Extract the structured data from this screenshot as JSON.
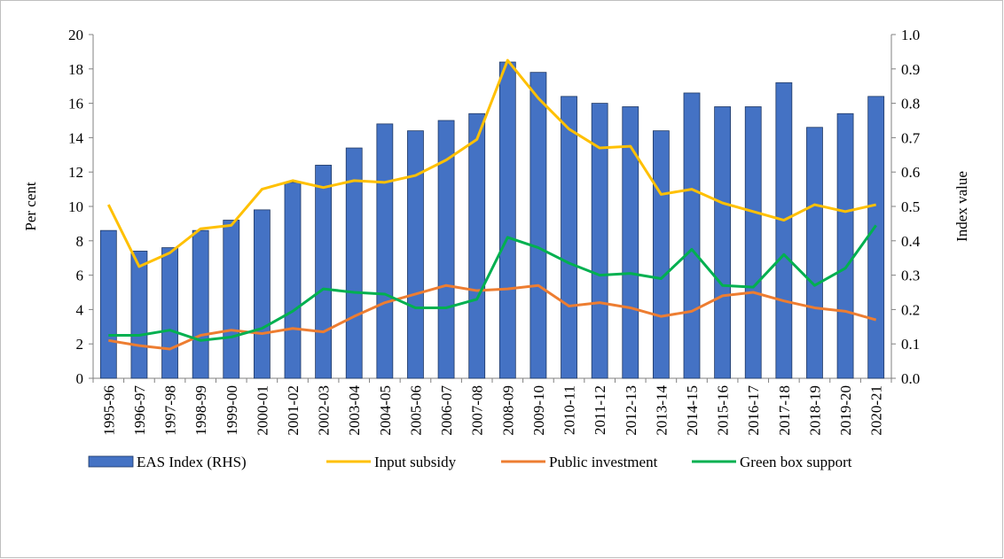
{
  "chart_data": {
    "type": "bar-line",
    "ylabel": "Per cent",
    "y2label": "Index value",
    "categories": [
      "1995-96",
      "1996-97",
      "1997-98",
      "1998-99",
      "1999-00",
      "2000-01",
      "2001-02",
      "2002-03",
      "2003-04",
      "2004-05",
      "2005-06",
      "2006-07",
      "2007-08",
      "2008-09",
      "2009-10",
      "2010-11",
      "2011-12",
      "2012-13",
      "2013-14",
      "2014-15",
      "2015-16",
      "2016-17",
      "2017-18",
      "2018-19",
      "2019-20",
      "2020-21"
    ],
    "ylim": [
      0,
      20
    ],
    "yticks": [
      0,
      2,
      4,
      6,
      8,
      10,
      12,
      14,
      16,
      18,
      20
    ],
    "y2lim": [
      0,
      1
    ],
    "y2ticks": [
      {
        "value": 0,
        "label": "0.0"
      },
      0.1,
      0.2,
      0.3,
      0.4,
      0.5,
      0.6,
      0.7,
      0.8,
      0.9,
      {
        "value": 1,
        "label": "1.0"
      }
    ],
    "series": [
      {
        "name": "EAS Index (RHS)",
        "type": "bar",
        "axis": "y2",
        "color": "#4472c4",
        "values": [
          0.43,
          0.37,
          0.38,
          0.43,
          0.46,
          0.49,
          0.57,
          0.62,
          0.67,
          0.74,
          0.72,
          0.75,
          0.77,
          0.92,
          0.89,
          0.82,
          0.8,
          0.79,
          0.72,
          0.83,
          0.79,
          0.79,
          0.86,
          0.73,
          0.77,
          0.82
        ]
      },
      {
        "name": "Input subsidy",
        "type": "line",
        "color": "#ffc000",
        "values": [
          10.1,
          6.5,
          7.3,
          8.7,
          8.9,
          11.0,
          11.5,
          11.1,
          11.5,
          11.4,
          11.8,
          12.7,
          13.9,
          18.5,
          16.3,
          14.5,
          13.4,
          13.5,
          10.7,
          11.0,
          10.2,
          9.7,
          9.2,
          10.1,
          9.7,
          10.1
        ]
      },
      {
        "name": "Public investment",
        "type": "line",
        "color": "#ed7d31",
        "values": [
          2.2,
          1.9,
          1.7,
          2.5,
          2.8,
          2.6,
          2.9,
          2.7,
          3.6,
          4.4,
          4.9,
          5.4,
          5.1,
          5.2,
          5.4,
          4.2,
          4.4,
          4.1,
          3.6,
          3.9,
          4.8,
          5.0,
          4.5,
          4.1,
          3.9,
          3.4
        ]
      },
      {
        "name": "Green box support",
        "type": "line",
        "color": "#00b050",
        "values": [
          2.5,
          2.5,
          2.8,
          2.2,
          2.4,
          2.9,
          3.9,
          5.2,
          5.0,
          4.9,
          4.1,
          4.1,
          4.6,
          8.2,
          7.6,
          6.7,
          6.0,
          6.1,
          5.8,
          7.5,
          5.4,
          5.3,
          7.2,
          5.4,
          6.4,
          8.9
        ]
      }
    ]
  }
}
